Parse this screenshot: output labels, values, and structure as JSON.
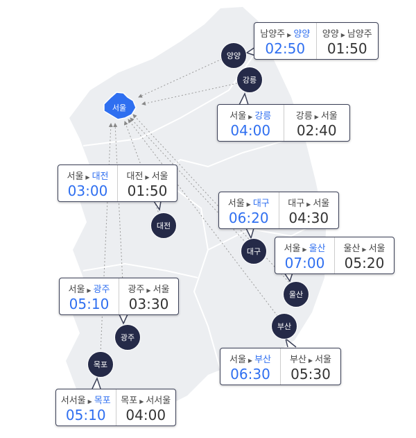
{
  "colors": {
    "accent": "#2f6ff0",
    "city_marker": "#252a48",
    "land": "#eceef1",
    "seoul": "#2f6ff0"
  },
  "seoul": {
    "label": "서울"
  },
  "cities": [
    {
      "id": "yangyang",
      "label": "양양",
      "out": {
        "from": "남양주",
        "to": "양양",
        "time": "02:50"
      },
      "back": {
        "from": "양양",
        "to": "남양주",
        "time": "01:50"
      }
    },
    {
      "id": "gangneung",
      "label": "강릉",
      "out": {
        "from": "서울",
        "to": "강릉",
        "time": "04:00"
      },
      "back": {
        "from": "강릉",
        "to": "서울",
        "time": "02:40"
      }
    },
    {
      "id": "daejeon",
      "label": "대전",
      "out": {
        "from": "서울",
        "to": "대전",
        "time": "03:00"
      },
      "back": {
        "from": "대전",
        "to": "서울",
        "time": "01:50"
      }
    },
    {
      "id": "daegu",
      "label": "대구",
      "out": {
        "from": "서울",
        "to": "대구",
        "time": "06:20"
      },
      "back": {
        "from": "대구",
        "to": "서울",
        "time": "04:30"
      }
    },
    {
      "id": "ulsan",
      "label": "울산",
      "out": {
        "from": "서울",
        "to": "울산",
        "time": "07:00"
      },
      "back": {
        "from": "울산",
        "to": "서울",
        "time": "05:20"
      }
    },
    {
      "id": "gwangju",
      "label": "광주",
      "out": {
        "from": "서울",
        "to": "광주",
        "time": "05:10"
      },
      "back": {
        "from": "광주",
        "to": "서울",
        "time": "03:30"
      }
    },
    {
      "id": "busan",
      "label": "부산",
      "out": {
        "from": "서울",
        "to": "부산",
        "time": "06:30"
      },
      "back": {
        "from": "부산",
        "to": "서울",
        "time": "05:30"
      }
    },
    {
      "id": "mokpo",
      "label": "목포",
      "out": {
        "from": "서서울",
        "to": "목포",
        "time": "05:10"
      },
      "back": {
        "from": "목포",
        "to": "서서울",
        "time": "04:00"
      }
    }
  ]
}
